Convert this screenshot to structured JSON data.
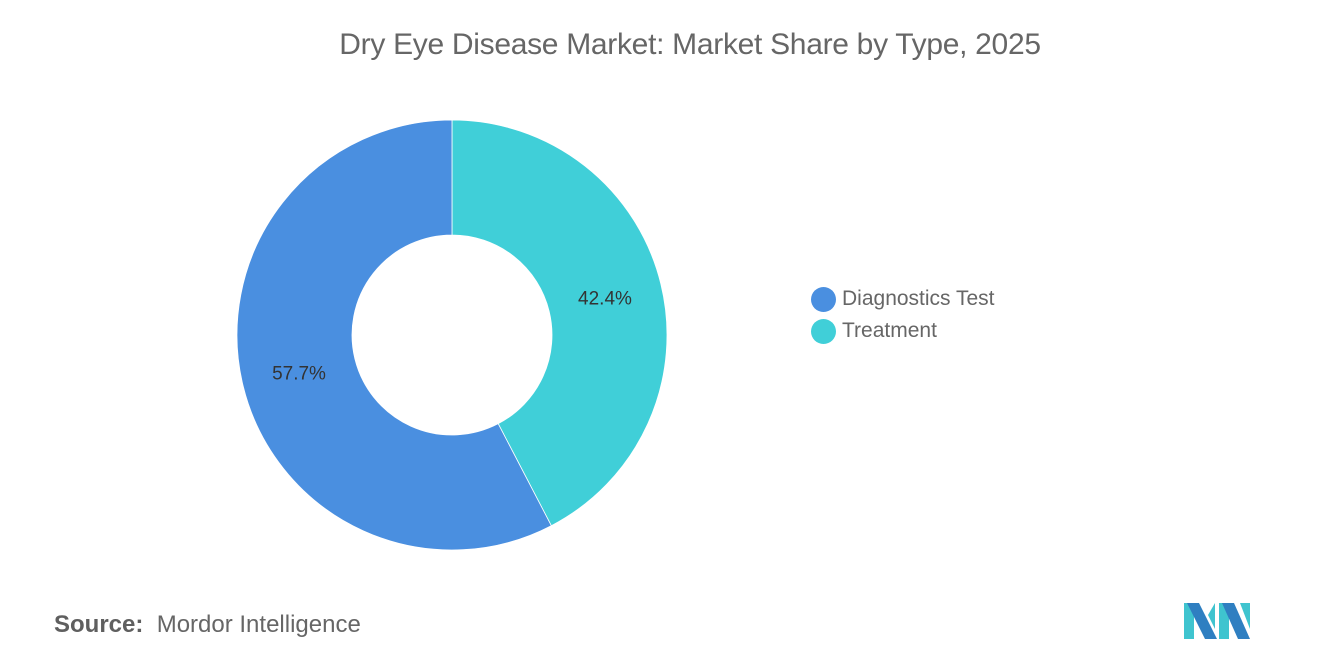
{
  "title": "Dry Eye Disease Market: Market Share by Type, 2025",
  "chart_data": {
    "type": "pie",
    "subtype": "donut",
    "title": "Dry Eye Disease Market: Market Share by Type, 2025",
    "categories": [
      "Diagnostics Test",
      "Treatment"
    ],
    "values": [
      57.7,
      42.4
    ],
    "labels": [
      "57.7%",
      "42.4%"
    ],
    "colors": [
      "#4a8fe0",
      "#40cfd8"
    ],
    "legend_position": "right",
    "start_angle": "12 o'clock, clockwise order: Treatment then Diagnostics Test"
  },
  "legend": {
    "items": [
      {
        "label": "Diagnostics Test",
        "color": "#4a8fe0"
      },
      {
        "label": "Treatment",
        "color": "#40cfd8"
      }
    ]
  },
  "source": {
    "prefix": "Source:",
    "name": "Mordor Intelligence"
  },
  "logo": {
    "icon": "mordor-intelligence-logo-icon"
  }
}
